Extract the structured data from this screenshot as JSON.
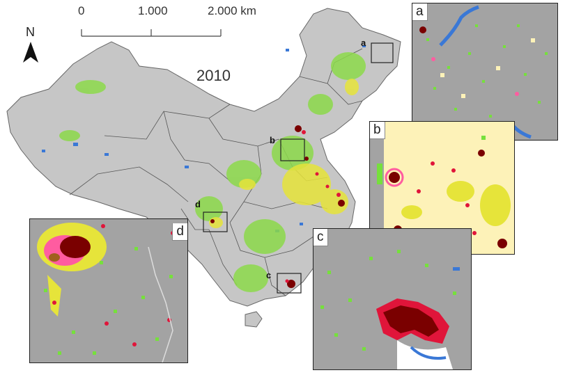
{
  "map": {
    "year_label": "2010",
    "north_label": "N",
    "scale": {
      "ticks": [
        "0",
        "1.000",
        "2.000 km"
      ]
    },
    "boxes": [
      "a",
      "b",
      "c",
      "d"
    ],
    "insets": {
      "a": {
        "label": "a"
      },
      "b": {
        "label": "b"
      },
      "c": {
        "label": "c"
      },
      "d": {
        "label": "d"
      }
    },
    "colors": {
      "background_gray": "#999999",
      "terrain_light": "#c8c8c8",
      "water": "#3a78d6",
      "green": "#76e03c",
      "yellow": "#e6e43a",
      "pale_yellow": "#fdf2b8",
      "pink": "#ff5ca0",
      "red": "#e0153a",
      "dark_red": "#7a0000",
      "brown": "#a0601e"
    }
  }
}
